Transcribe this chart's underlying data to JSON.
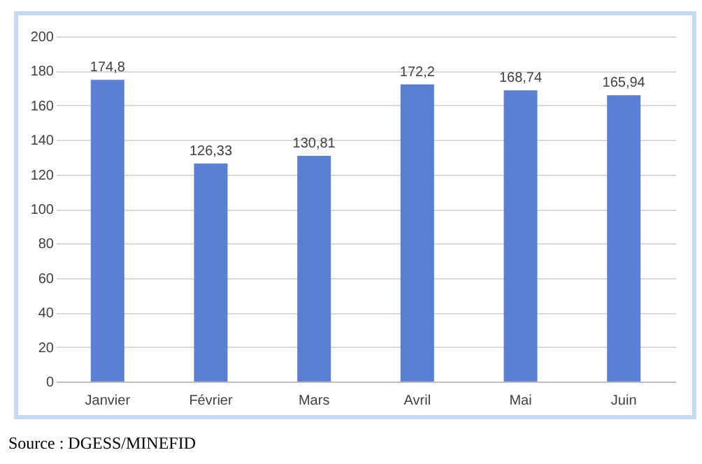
{
  "chart_data": {
    "type": "bar",
    "categories": [
      "Janvier",
      "Février",
      "Mars",
      "Avril",
      "Mai",
      "Juin"
    ],
    "values": [
      174.8,
      126.33,
      130.81,
      172.2,
      168.74,
      165.94
    ],
    "value_labels": [
      "174,8",
      "126,33",
      "130,81",
      "172,2",
      "168,74",
      "165,94"
    ],
    "color": "#5b7fd3",
    "ylim": [
      0,
      200
    ],
    "yticks": [
      0,
      20,
      40,
      60,
      80,
      100,
      120,
      140,
      160,
      180,
      200
    ],
    "grid": "y",
    "annotations": [
      "Source : DGESS/MINEFID"
    ]
  }
}
